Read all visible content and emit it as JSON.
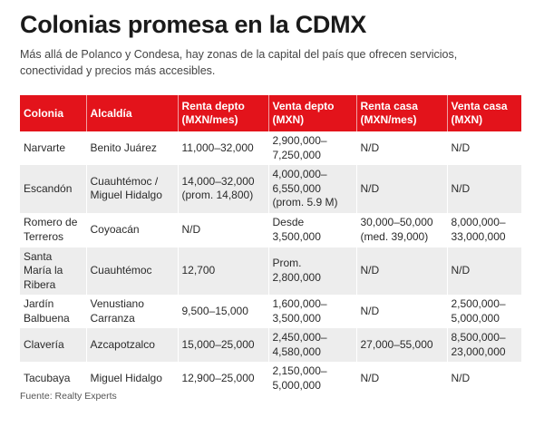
{
  "title": "Colonias promesa en la CDMX",
  "subtitle": "Más allá de Polanco y Condesa, hay zonas de la capital del país que ofrecen servicios, conectividad y precios más accesibles.",
  "source": "Fuente: Realty Experts",
  "colors": {
    "header": "#e3131b",
    "stripe": "#ededed"
  },
  "chart_data": {
    "type": "table",
    "columns": [
      "Colonia",
      "Alcaldía",
      "Renta depto (MXN/mes)",
      "Venta depto (MXN)",
      "Renta casa (MXN/mes)",
      "Venta casa (MXN)"
    ],
    "rows": [
      [
        "Narvarte",
        "Benito Juárez",
        "11,000–32,000",
        "2,900,000–7,250,000",
        "N/D",
        "N/D"
      ],
      [
        "Escandón",
        "Cuauhtémoc / Miguel Hidalgo",
        "14,000–32,000 (prom. 14,800)",
        "4,000,000–6,550,000 (prom. 5.9 M)",
        "N/D",
        "N/D"
      ],
      [
        "Romero de Terreros",
        "Coyoacán",
        "N/D",
        "Desde 3,500,000",
        "30,000–50,000 (med. 39,000)",
        "8,000,000–33,000,000"
      ],
      [
        "Santa María la Ribera",
        "Cuauhtémoc",
        "12,700",
        "Prom. 2,800,000",
        "N/D",
        "N/D"
      ],
      [
        "Jardín Balbuena",
        "Venustiano Carranza",
        "9,500–15,000",
        "1,600,000–3,500,000",
        "N/D",
        "2,500,000–5,000,000"
      ],
      [
        "Clavería",
        "Azcapotzalco",
        "15,000–25,000",
        "2,450,000–4,580,000",
        "27,000–55,000",
        "8,500,000–23,000,000"
      ],
      [
        "Tacubaya",
        "Miguel Hidalgo",
        "12,900–25,000",
        "2,150,000–5,000,000",
        "N/D",
        "N/D"
      ]
    ]
  }
}
